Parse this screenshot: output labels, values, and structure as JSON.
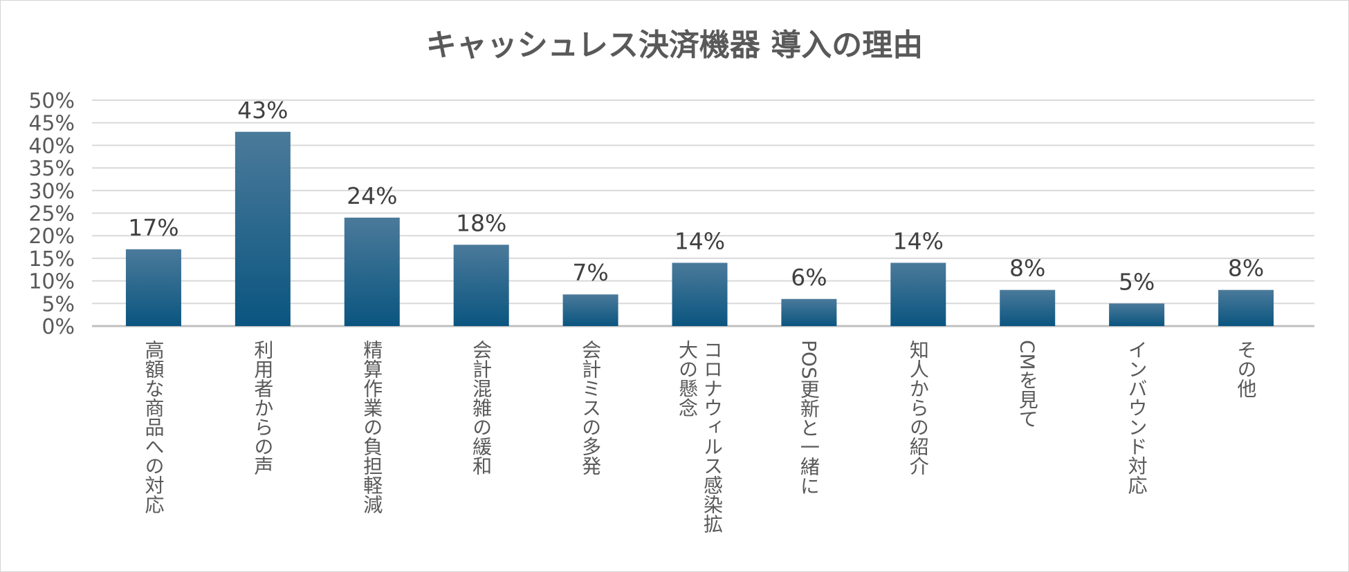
{
  "chart_data": {
    "type": "bar",
    "title": "キャッシュレス決済機器 導入の理由",
    "xlabel": "",
    "ylabel": "",
    "ylim": [
      0,
      50
    ],
    "ytick_step": 5,
    "value_suffix": "%",
    "grid": true,
    "legend": "none",
    "categories": [
      "高額な商品への対応",
      "利用者からの声",
      "精算作業の負担軽減",
      "会計混雑の緩和",
      "会計ミスの多発",
      "コロナウィルス感染拡大の懸念",
      "POS更新と一緒に",
      "知人からの紹介",
      "CMを見て",
      "インバウンド対応",
      "その他"
    ],
    "category_lines": [
      [
        "高額な商品への対応"
      ],
      [
        "利用者からの声"
      ],
      [
        "精算作業の負担軽減"
      ],
      [
        "会計混雑の緩和"
      ],
      [
        "会計ミスの多発"
      ],
      [
        "コロナウィルス感染拡",
        "大の懸念"
      ],
      [
        "POS更新と一緒に"
      ],
      [
        "知人からの紹介"
      ],
      [
        "CMを見て"
      ],
      [
        "インバウンド対応"
      ],
      [
        "その他"
      ]
    ],
    "values": [
      17,
      43,
      24,
      18,
      7,
      14,
      6,
      14,
      8,
      5,
      8
    ],
    "data_labels": [
      "17%",
      "43%",
      "24%",
      "18%",
      "7%",
      "14%",
      "6%",
      "14%",
      "8%",
      "5%",
      "8%"
    ],
    "bar_color_top": "#4b7a9a",
    "bar_color_bottom": "#0a5580"
  }
}
